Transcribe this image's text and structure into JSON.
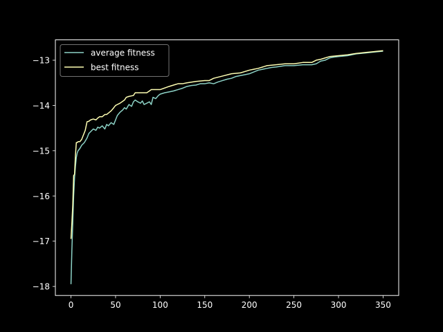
{
  "chart_data": {
    "type": "line",
    "title": "",
    "xlabel": "",
    "ylabel": "",
    "xlim": [
      -17.5,
      367.5
    ],
    "ylim": [
      -18.2,
      -12.55
    ],
    "xticks": [
      0,
      50,
      100,
      150,
      200,
      250,
      300,
      350
    ],
    "yticks": [
      -18,
      -17,
      -16,
      -15,
      -14,
      -13
    ],
    "grid": false,
    "legend_position": "upper left",
    "series": [
      {
        "name": "average fitness",
        "color": "#8dd3c7",
        "x": [
          0,
          1,
          2,
          3,
          4,
          5,
          6,
          7,
          8,
          10,
          12,
          15,
          18,
          20,
          22,
          25,
          28,
          30,
          32,
          35,
          38,
          40,
          42,
          45,
          48,
          50,
          52,
          55,
          58,
          60,
          62,
          65,
          68,
          70,
          72,
          75,
          78,
          80,
          82,
          85,
          88,
          90,
          92,
          95,
          98,
          100,
          105,
          110,
          115,
          120,
          125,
          130,
          135,
          140,
          145,
          150,
          155,
          160,
          165,
          170,
          175,
          180,
          185,
          190,
          195,
          200,
          205,
          210,
          215,
          220,
          225,
          230,
          240,
          250,
          260,
          270,
          275,
          280,
          285,
          290,
          295,
          300,
          310,
          320,
          330,
          340,
          350
        ],
        "y": [
          -17.95,
          -17.2,
          -16.6,
          -16.0,
          -15.6,
          -15.35,
          -15.15,
          -15.05,
          -15.0,
          -14.95,
          -14.88,
          -14.82,
          -14.72,
          -14.62,
          -14.58,
          -14.52,
          -14.55,
          -14.48,
          -14.5,
          -14.45,
          -14.52,
          -14.42,
          -14.45,
          -14.38,
          -14.42,
          -14.32,
          -14.22,
          -14.15,
          -14.1,
          -14.05,
          -14.08,
          -13.98,
          -14.02,
          -13.92,
          -13.88,
          -13.92,
          -13.95,
          -13.9,
          -13.98,
          -13.95,
          -13.92,
          -13.98,
          -13.82,
          -13.85,
          -13.78,
          -13.75,
          -13.72,
          -13.7,
          -13.68,
          -13.65,
          -13.62,
          -13.58,
          -13.56,
          -13.55,
          -13.52,
          -13.52,
          -13.5,
          -13.52,
          -13.48,
          -13.45,
          -13.42,
          -13.4,
          -13.36,
          -13.34,
          -13.32,
          -13.3,
          -13.26,
          -13.22,
          -13.2,
          -13.18,
          -13.16,
          -13.15,
          -13.12,
          -13.12,
          -13.1,
          -13.1,
          -13.08,
          -13.02,
          -13.0,
          -12.95,
          -12.93,
          -12.92,
          -12.9,
          -12.86,
          -12.84,
          -12.82,
          -12.8
        ]
      },
      {
        "name": "best fitness",
        "color": "#ffffb3",
        "x": [
          0,
          1,
          2,
          3,
          4,
          5,
          6,
          7,
          8,
          10,
          12,
          14,
          16,
          18,
          20,
          22,
          25,
          28,
          30,
          32,
          35,
          38,
          40,
          45,
          48,
          50,
          52,
          55,
          60,
          62,
          65,
          70,
          72,
          75,
          80,
          85,
          88,
          90,
          95,
          100,
          110,
          115,
          120,
          125,
          130,
          140,
          150,
          155,
          160,
          170,
          180,
          190,
          200,
          205,
          210,
          215,
          220,
          230,
          240,
          250,
          260,
          270,
          275,
          280,
          285,
          290,
          300,
          310,
          320,
          330,
          340,
          350
        ],
        "y": [
          -16.95,
          -16.6,
          -16.2,
          -15.55,
          -15.52,
          -15.1,
          -14.82,
          -14.82,
          -14.8,
          -14.8,
          -14.75,
          -14.65,
          -14.55,
          -14.36,
          -14.35,
          -14.32,
          -14.3,
          -14.32,
          -14.28,
          -14.25,
          -14.25,
          -14.2,
          -14.2,
          -14.12,
          -14.05,
          -14.0,
          -13.98,
          -13.95,
          -13.88,
          -13.82,
          -13.8,
          -13.78,
          -13.72,
          -13.72,
          -13.72,
          -13.72,
          -13.68,
          -13.65,
          -13.65,
          -13.65,
          -13.58,
          -13.55,
          -13.52,
          -13.52,
          -13.5,
          -13.47,
          -13.45,
          -13.45,
          -13.4,
          -13.35,
          -13.3,
          -13.28,
          -13.22,
          -13.2,
          -13.18,
          -13.15,
          -13.12,
          -13.1,
          -13.08,
          -13.08,
          -13.05,
          -13.05,
          -13.0,
          -12.98,
          -12.95,
          -12.92,
          -12.9,
          -12.88,
          -12.85,
          -12.83,
          -12.81,
          -12.79
        ]
      }
    ]
  }
}
